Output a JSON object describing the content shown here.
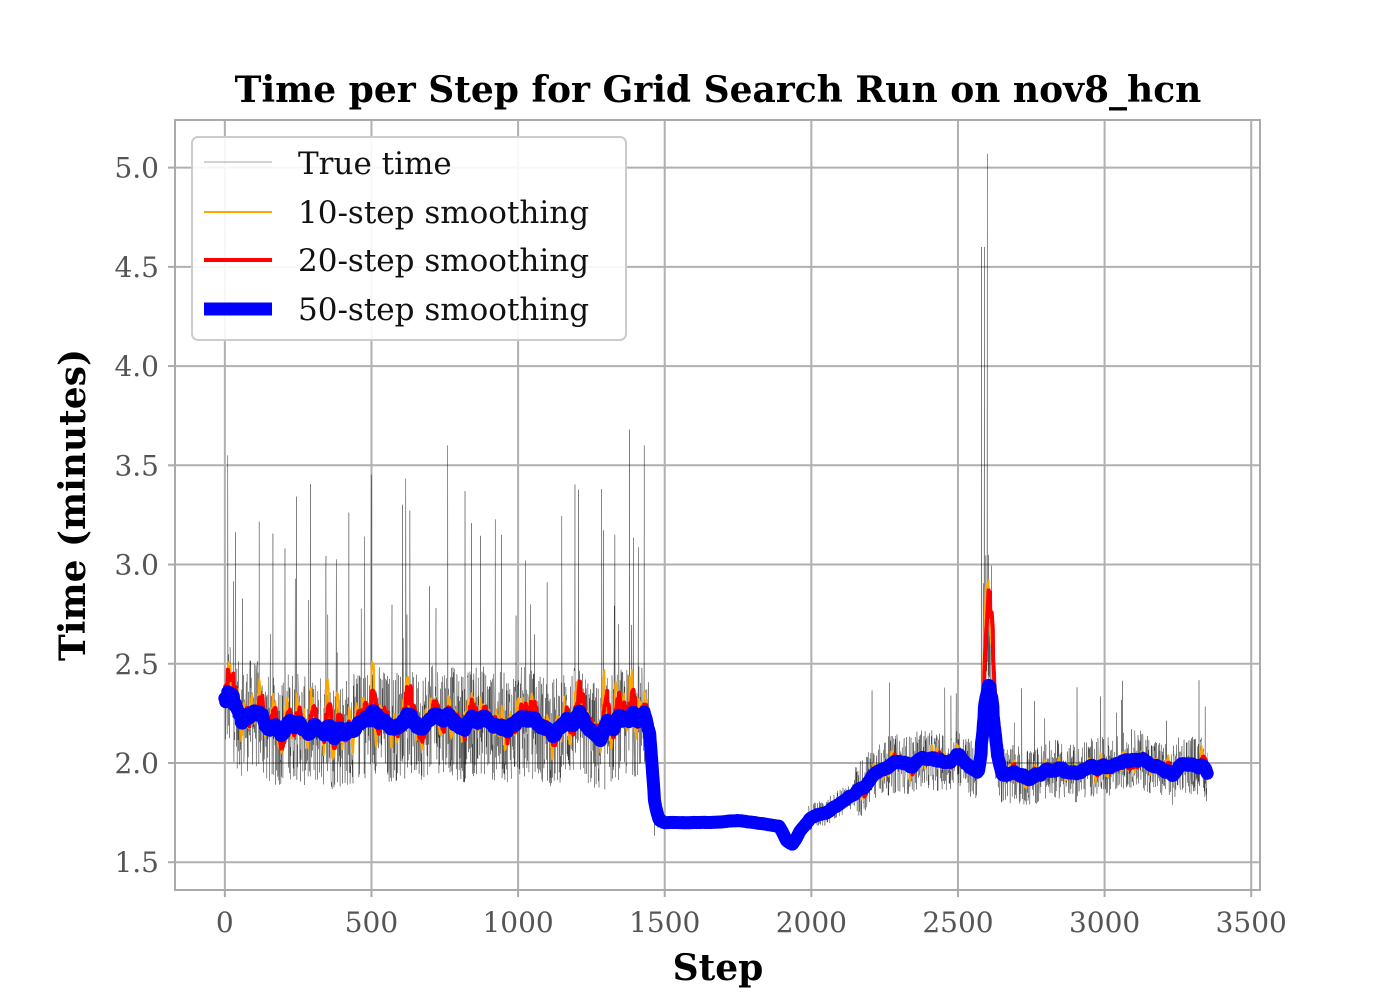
{
  "chart_data": {
    "type": "line",
    "title": "Time per Step for Grid Search Run on nov8_hcn",
    "xlabel": "Step",
    "ylabel": "Time (minutes)",
    "xlim": [
      -170,
      3530
    ],
    "ylim": [
      1.36,
      5.24
    ],
    "x_ticks": [
      0,
      500,
      1000,
      1500,
      2000,
      2500,
      3000,
      3500
    ],
    "x_tick_labels": [
      "0",
      "500",
      "1000",
      "1500",
      "2000",
      "2500",
      "3000",
      "3500"
    ],
    "y_ticks": [
      1.5,
      2.0,
      2.5,
      3.0,
      3.5,
      4.0,
      4.5,
      5.0
    ],
    "y_tick_labels": [
      "1.5",
      "2.0",
      "2.5",
      "3.0",
      "3.5",
      "4.0",
      "4.5",
      "5.0"
    ],
    "grid": true,
    "legend_position": "top-left",
    "series": [
      {
        "name": "True time",
        "color": "#000000",
        "width": 0.4,
        "opacity": 0.75,
        "description_points": [
          [
            0,
            2.3
          ],
          [
            1440,
            2.2
          ],
          [
            1470,
            1.7
          ],
          [
            1880,
            1.69
          ],
          [
            1920,
            1.58
          ],
          [
            2000,
            1.73
          ],
          [
            2250,
            1.98
          ],
          [
            2600,
            5.07
          ],
          [
            2650,
            1.95
          ],
          [
            3350,
            1.95
          ]
        ]
      },
      {
        "name": "10-step smoothing",
        "color": "#ffa500",
        "width": 2
      },
      {
        "name": "20-step smoothing",
        "color": "#ff0000",
        "width": 4
      },
      {
        "name": "50-step smoothing",
        "color": "#0000ff",
        "width": 13
      }
    ],
    "smoothed_trend": [
      [
        0,
        2.3
      ],
      [
        20,
        2.32
      ],
      [
        40,
        2.25
      ],
      [
        60,
        2.2
      ],
      [
        80,
        2.24
      ],
      [
        100,
        2.26
      ],
      [
        130,
        2.2
      ],
      [
        160,
        2.15
      ],
      [
        200,
        2.17
      ],
      [
        230,
        2.2
      ],
      [
        260,
        2.17
      ],
      [
        290,
        2.14
      ],
      [
        320,
        2.17
      ],
      [
        360,
        2.14
      ],
      [
        400,
        2.15
      ],
      [
        440,
        2.17
      ],
      [
        480,
        2.2
      ],
      [
        520,
        2.23
      ],
      [
        560,
        2.17
      ],
      [
        600,
        2.2
      ],
      [
        640,
        2.18
      ],
      [
        680,
        2.2
      ],
      [
        720,
        2.22
      ],
      [
        760,
        2.24
      ],
      [
        800,
        2.17
      ],
      [
        840,
        2.2
      ],
      [
        880,
        2.22
      ],
      [
        920,
        2.18
      ],
      [
        960,
        2.18
      ],
      [
        1000,
        2.21
      ],
      [
        1040,
        2.2
      ],
      [
        1080,
        2.18
      ],
      [
        1120,
        2.15
      ],
      [
        1160,
        2.2
      ],
      [
        1200,
        2.21
      ],
      [
        1240,
        2.16
      ],
      [
        1280,
        2.11
      ],
      [
        1320,
        2.18
      ],
      [
        1360,
        2.2
      ],
      [
        1400,
        2.21
      ],
      [
        1430,
        2.24
      ],
      [
        1450,
        2.1
      ],
      [
        1465,
        1.75
      ],
      [
        1480,
        1.7
      ],
      [
        1550,
        1.7
      ],
      [
        1650,
        1.7
      ],
      [
        1750,
        1.71
      ],
      [
        1850,
        1.69
      ],
      [
        1890,
        1.68
      ],
      [
        1915,
        1.6
      ],
      [
        1935,
        1.59
      ],
      [
        1960,
        1.66
      ],
      [
        2000,
        1.73
      ],
      [
        2050,
        1.75
      ],
      [
        2100,
        1.8
      ],
      [
        2150,
        1.85
      ],
      [
        2200,
        1.92
      ],
      [
        2250,
        1.98
      ],
      [
        2300,
        2.0
      ],
      [
        2340,
        1.99
      ],
      [
        2380,
        2.03
      ],
      [
        2420,
        2.01
      ],
      [
        2460,
        2.0
      ],
      [
        2500,
        2.04
      ],
      [
        2540,
        1.97
      ],
      [
        2570,
        1.96
      ],
      [
        2590,
        2.2
      ],
      [
        2610,
        2.18
      ],
      [
        2630,
        2.05
      ],
      [
        2650,
        1.94
      ],
      [
        2700,
        1.94
      ],
      [
        2750,
        1.92
      ],
      [
        2800,
        1.96
      ],
      [
        2850,
        1.97
      ],
      [
        2900,
        1.94
      ],
      [
        2950,
        1.98
      ],
      [
        3000,
        1.98
      ],
      [
        3050,
        2.0
      ],
      [
        3100,
        2.03
      ],
      [
        3150,
        2.0
      ],
      [
        3200,
        1.96
      ],
      [
        3230,
        1.93
      ],
      [
        3260,
        2.0
      ],
      [
        3300,
        1.99
      ],
      [
        3330,
        1.98
      ],
      [
        3350,
        1.94
      ]
    ],
    "spikes": [
      [
        2580,
        4.6
      ],
      [
        2600,
        5.07
      ],
      [
        1380,
        3.68
      ],
      [
        1430,
        3.6
      ],
      [
        10,
        3.55
      ],
      [
        760,
        3.6
      ]
    ]
  }
}
